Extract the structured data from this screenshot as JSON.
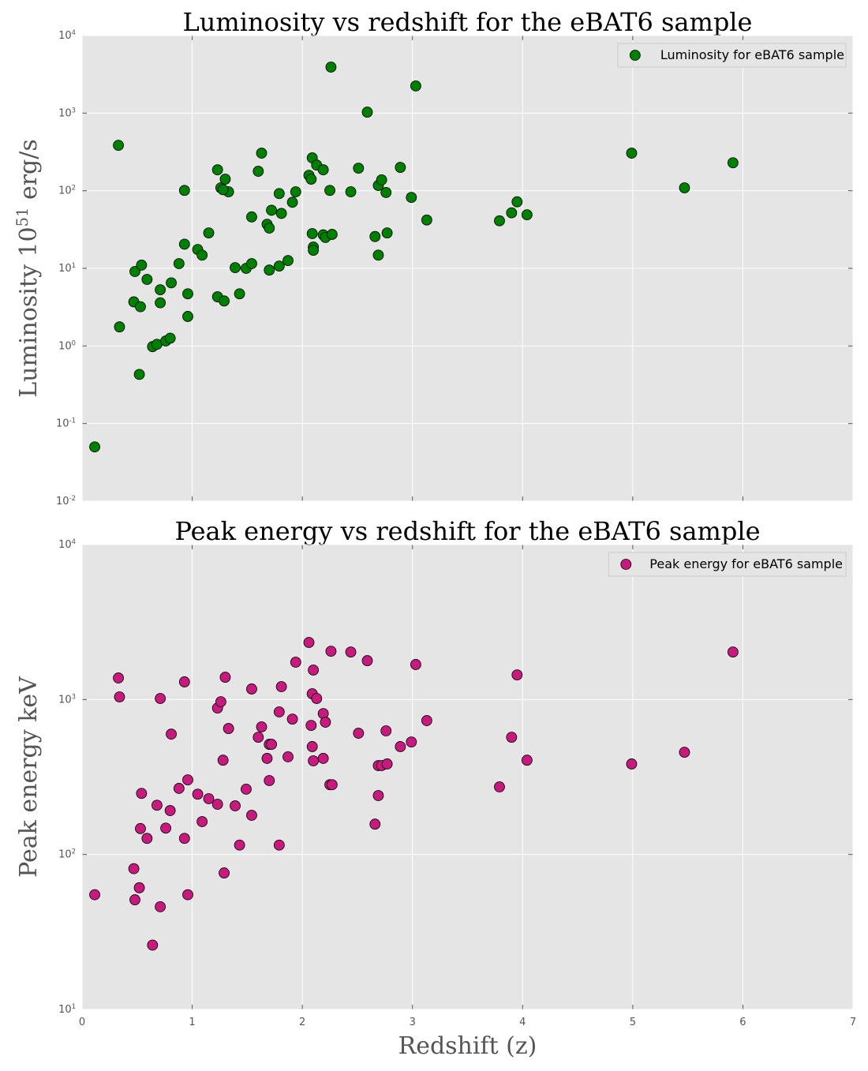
{
  "chart_data": [
    {
      "type": "scatter",
      "title": "Luminosity vs redshift for the eBAT6 sample",
      "ylabel": "Luminosity 10^51 erg/s",
      "xlim": [
        0,
        7
      ],
      "xticks": [
        0,
        1,
        2,
        3,
        4,
        5,
        6,
        7
      ],
      "ylim": [
        0.01,
        10000
      ],
      "log_y": true,
      "grid": true,
      "legend": "upper right",
      "yticks": [
        {
          "value": 0.01,
          "label": "10^-2"
        },
        {
          "value": 0.1,
          "label": "10^-1"
        },
        {
          "value": 1,
          "label": "10^0"
        },
        {
          "value": 10,
          "label": "10^1"
        },
        {
          "value": 100,
          "label": "10^2"
        },
        {
          "value": 1000,
          "label": "10^3"
        },
        {
          "value": 10000,
          "label": "10^4"
        }
      ],
      "series": [
        {
          "name": "Luminosity for eBAT6 sample",
          "color": "#008000",
          "x": [
            0.115,
            0.33,
            0.34,
            0.52,
            0.47,
            0.48,
            0.53,
            0.54,
            0.59,
            0.64,
            0.68,
            0.71,
            0.71,
            0.76,
            0.8,
            0.81,
            0.88,
            0.93,
            0.93,
            0.96,
            0.96,
            1.05,
            1.09,
            1.15,
            1.23,
            1.23,
            1.26,
            1.29,
            1.3,
            1.33,
            1.28,
            1.39,
            1.43,
            1.49,
            1.54,
            1.54,
            1.63,
            1.6,
            1.68,
            1.7,
            1.7,
            1.72,
            1.79,
            1.79,
            1.81,
            1.87,
            1.91,
            1.94,
            2.06,
            2.09,
            2.08,
            2.09,
            2.1,
            2.1,
            2.13,
            2.19,
            2.19,
            2.21,
            2.25,
            2.26,
            2.27,
            2.44,
            2.51,
            2.59,
            2.66,
            2.69,
            2.69,
            2.72,
            2.76,
            2.77,
            2.89,
            2.99,
            3.03,
            3.13,
            3.79,
            3.9,
            3.95,
            4.04,
            4.99,
            5.47,
            5.91
          ],
          "values": [
            0.05,
            385,
            1.76,
            0.43,
            3.7,
            9.1,
            3.2,
            11,
            7.2,
            0.98,
            1.05,
            3.6,
            5.3,
            1.16,
            1.26,
            6.5,
            11.5,
            101,
            20.5,
            4.7,
            2.4,
            17.5,
            14.8,
            28.6,
            186,
            4.3,
            109,
            3.8,
            141,
            97,
            103,
            10.2,
            4.7,
            10,
            11.5,
            46,
            305,
            178,
            37,
            33,
            9.5,
            56,
            92,
            10.7,
            51,
            12.6,
            71,
            97,
            158,
            265,
            141,
            28,
            18.8,
            17.1,
            214,
            186,
            27,
            25,
            101,
            3920,
            27.4,
            97,
            195,
            1030,
            25.7,
            14.8,
            117,
            138,
            95,
            28.6,
            200,
            82,
            2240,
            42,
            41,
            52,
            72,
            49,
            305,
            109,
            229
          ]
        }
      ]
    },
    {
      "type": "scatter",
      "title": "Peak energy vs redshift for the eBAT6 sample",
      "ylabel": "Peak energy keV",
      "xlabel": "Redshift (z)",
      "xlim": [
        0,
        7
      ],
      "xticks": [
        0,
        1,
        2,
        3,
        4,
        5,
        6,
        7
      ],
      "ylim": [
        10,
        10000
      ],
      "log_y": true,
      "grid": true,
      "legend": "upper right",
      "yticks": [
        {
          "value": 10,
          "label": "10^1"
        },
        {
          "value": 100,
          "label": "10^2"
        },
        {
          "value": 1000,
          "label": "10^3"
        },
        {
          "value": 10000,
          "label": "10^4"
        }
      ],
      "series": [
        {
          "name": "Peak energy for eBAT6 sample",
          "color": "#c8197f",
          "x": [
            0.115,
            0.33,
            0.34,
            0.47,
            0.48,
            0.52,
            0.53,
            0.54,
            0.59,
            0.64,
            0.68,
            0.71,
            0.71,
            0.76,
            0.8,
            0.81,
            0.88,
            0.93,
            0.93,
            0.96,
            0.96,
            1.05,
            1.09,
            1.15,
            1.23,
            1.23,
            1.26,
            1.29,
            1.28,
            1.3,
            1.33,
            1.39,
            1.43,
            1.49,
            1.54,
            1.54,
            1.63,
            1.6,
            1.68,
            1.7,
            1.7,
            1.72,
            1.79,
            1.79,
            1.81,
            1.87,
            1.91,
            1.94,
            2.06,
            2.09,
            2.08,
            2.09,
            2.1,
            2.1,
            2.13,
            2.19,
            2.19,
            2.21,
            2.25,
            2.26,
            2.27,
            2.44,
            2.51,
            2.59,
            2.66,
            2.69,
            2.69,
            2.72,
            2.76,
            2.77,
            2.89,
            2.99,
            3.03,
            3.13,
            3.79,
            3.9,
            3.95,
            4.04,
            4.99,
            5.47,
            5.91
          ],
          "values": [
            55,
            1377,
            1040,
            81,
            51,
            61,
            147,
            248,
            127,
            26,
            208,
            1016,
            46,
            148,
            192,
            598,
            267,
            1300,
            127,
            303,
            55,
            245,
            163,
            229,
            881,
            211,
            968,
            76,
            406,
            1393,
            650,
            206,
            115,
            264,
            179,
            1170,
            666,
            571,
            417,
            514,
            300,
            514,
            832,
            115,
            1211,
            427,
            748,
            1742,
            2336,
            1089,
            681,
            497,
            402,
            1550,
            1016,
            812,
            417,
            714,
            282,
            2050,
            282,
            2027,
            606,
            1782,
            157,
            240,
            375,
            375,
            628,
            384,
            497,
            532,
            1683,
            731,
            273,
            571,
            1442,
            406,
            384,
            457,
            2027
          ]
        }
      ]
    }
  ]
}
